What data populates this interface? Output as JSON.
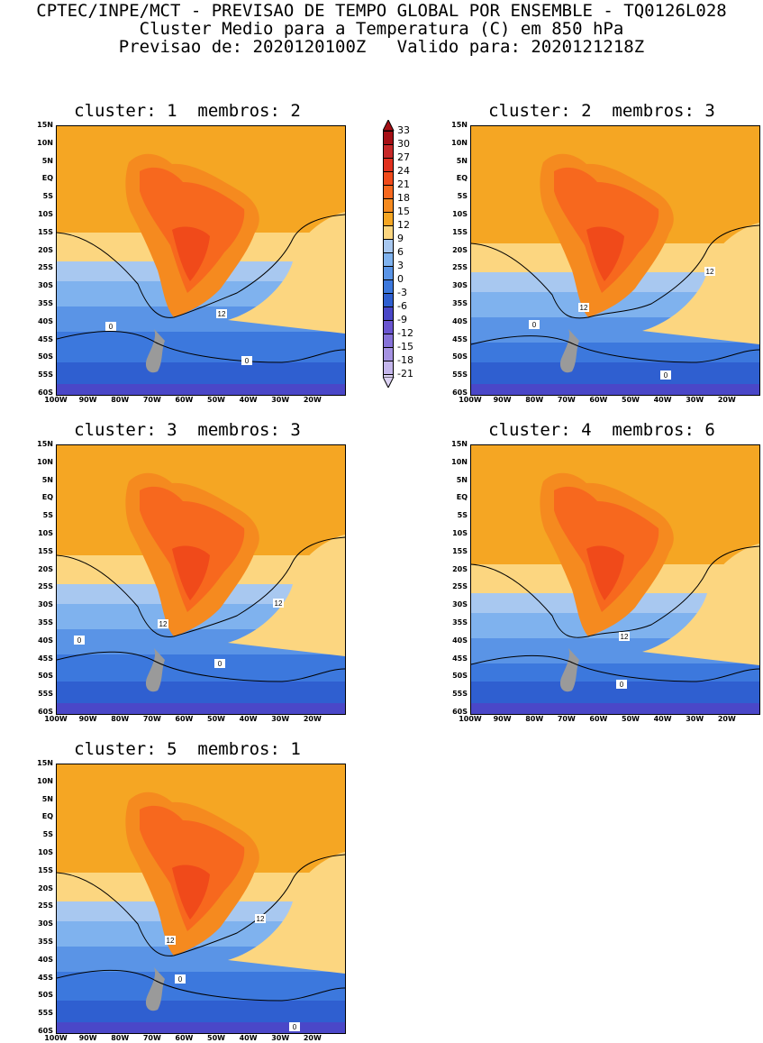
{
  "header": {
    "line1": "CPTEC/INPE/MCT - PREVISAO DE TEMPO GLOBAL POR ENSEMBLE - TQ0126L028",
    "line2": "Cluster Medio para a Temperatura (C) em 850 hPa",
    "line3": "Previsao de: 2020120100Z   Valido para: 2020121218Z"
  },
  "axes": {
    "y_ticks": [
      "15N",
      "10N",
      "5N",
      "EQ",
      "5S",
      "10S",
      "15S",
      "20S",
      "25S",
      "30S",
      "35S",
      "40S",
      "45S",
      "50S",
      "55S",
      "60S"
    ],
    "x_ticks": [
      "100W",
      "90W",
      "80W",
      "70W",
      "60W",
      "50W",
      "40W",
      "30W",
      "20W"
    ]
  },
  "panels": [
    {
      "title": "cluster: 1  membros: 2",
      "labels": [
        "12",
        "0",
        "0"
      ]
    },
    {
      "title": "cluster: 2  membros: 3",
      "labels": [
        "12",
        "12",
        "0",
        "0"
      ]
    },
    {
      "title": "cluster: 3  membros: 3",
      "labels": [
        "12",
        "12",
        "0",
        "0"
      ]
    },
    {
      "title": "cluster: 4  membros: 6",
      "labels": [
        "12",
        "0"
      ]
    },
    {
      "title": "cluster: 5  membros: 1",
      "labels": [
        "12",
        "12",
        "0",
        "0"
      ]
    }
  ],
  "colorbar": {
    "labels": [
      "33",
      "30",
      "27",
      "24",
      "21",
      "18",
      "15",
      "12",
      "9",
      "6",
      "3",
      "0",
      "-3",
      "-6",
      "-9",
      "-12",
      "-15",
      "-18",
      "-21"
    ],
    "colors": [
      "#a50f15",
      "#c62828",
      "#e0301e",
      "#f04a1a",
      "#f7681e",
      "#f58a1f",
      "#f5a623",
      "#fcd680",
      "#a8c8f0",
      "#7fb2ee",
      "#5a94e6",
      "#3c78dd",
      "#2f5fd0",
      "#4a47c8",
      "#6a55d0",
      "#8672d8",
      "#a592e2",
      "#c4b6ec",
      "#ddd3f4"
    ]
  },
  "palette": {
    "warm3": "#e0301e",
    "warm2": "#f04a1a",
    "warm1": "#f7681e",
    "orange": "#f58a1f",
    "lightorange": "#f5a623",
    "yellow": "#fcd680",
    "cool1": "#a8c8f0",
    "cool2": "#7fb2ee",
    "cool3": "#5a94e6",
    "cool4": "#3c78dd",
    "cool5": "#2f5fd0",
    "violet": "#4a47c8",
    "land": "#9a9a9a"
  }
}
